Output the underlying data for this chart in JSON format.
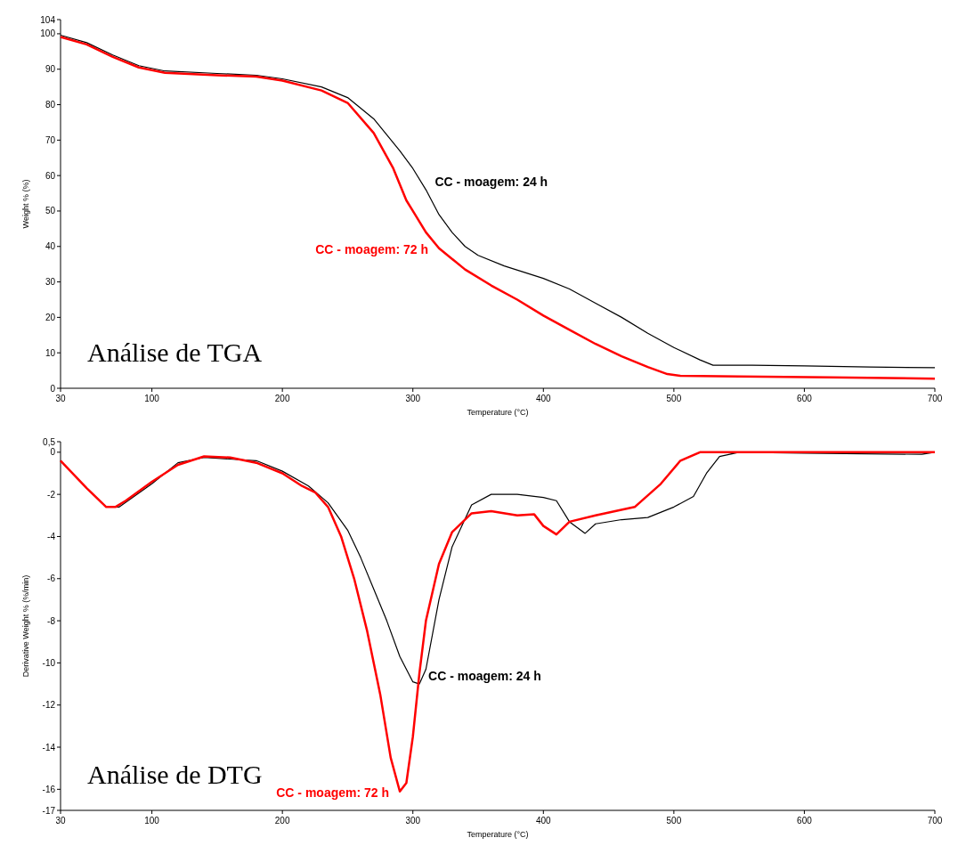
{
  "chart_data": [
    {
      "type": "line",
      "title": "Análise de TGA",
      "xlabel": "Temperature (°C)",
      "ylabel": "Weight % (%)",
      "xlim": [
        30,
        700
      ],
      "xticks": [
        30,
        100,
        200,
        300,
        400,
        500,
        600,
        700
      ],
      "ylim": [
        0,
        104
      ],
      "yticks": [
        0,
        10,
        20,
        30,
        40,
        50,
        60,
        70,
        80,
        90,
        100,
        104
      ],
      "grid": false,
      "legend": false,
      "annotations": [
        {
          "text": "CC - moagem: 24 h",
          "x": 310,
          "y": 56
        },
        {
          "text": "CC - moagem: 72 h",
          "x": 320,
          "y": 39.5
        }
      ],
      "series": [
        {
          "color": "#000000",
          "x": [
            30,
            50,
            70,
            90,
            110,
            150,
            180,
            200,
            230,
            250,
            270,
            290,
            300,
            310,
            320,
            330,
            340,
            350,
            370,
            400,
            420,
            440,
            460,
            480,
            500,
            520,
            530,
            560,
            600,
            650,
            700
          ],
          "values": [
            99.6,
            97.5,
            94,
            91,
            89.5,
            88.8,
            88.3,
            87.3,
            85,
            82,
            76,
            67,
            62,
            56,
            49,
            44,
            40,
            37.5,
            34.5,
            31,
            28,
            24,
            20,
            15.5,
            11.5,
            8,
            6.5,
            6.5,
            6.3,
            6,
            5.8
          ]
        },
        {
          "color": "#ff0000",
          "x": [
            30,
            50,
            70,
            90,
            110,
            150,
            180,
            200,
            230,
            250,
            270,
            285,
            295,
            300,
            310,
            320,
            340,
            360,
            380,
            400,
            420,
            440,
            460,
            480,
            495,
            505,
            550,
            620,
            700
          ],
          "values": [
            99.1,
            97,
            93.5,
            90.5,
            89,
            88.3,
            87.9,
            86.8,
            84,
            80.5,
            72,
            62,
            53,
            50,
            44,
            39.5,
            33.5,
            29,
            25,
            20.5,
            16.5,
            12.5,
            9,
            6,
            4,
            3.5,
            3.3,
            3.1,
            2.7
          ]
        }
      ]
    },
    {
      "type": "line",
      "title": "Análise de DTG",
      "xlabel": "Temperature (°C)",
      "ylabel": "Derivative Weight % (%/min)",
      "xlim": [
        30,
        700
      ],
      "xticks": [
        30,
        100,
        200,
        300,
        400,
        500,
        600,
        700
      ],
      "ylim": [
        -17,
        0.5
      ],
      "yticks": [
        -17,
        -16,
        -14,
        -12,
        -10,
        -8,
        -6,
        -4,
        -2,
        0,
        {
          "value": 0.5,
          "label": "0,5"
        }
      ],
      "grid": false,
      "legend": false,
      "annotations": [
        {
          "text": "CC - moagem: 24 h",
          "x": 305,
          "y": -11
        },
        {
          "text": "CC - moagem: 72 h",
          "x": 290,
          "y": -16.1
        }
      ],
      "series": [
        {
          "color": "#000000",
          "x": [
            30,
            50,
            65,
            75,
            100,
            120,
            140,
            180,
            200,
            220,
            235,
            250,
            260,
            270,
            280,
            290,
            300,
            305,
            310,
            320,
            330,
            345,
            360,
            380,
            400,
            410,
            420,
            432,
            440,
            460,
            480,
            500,
            515,
            525,
            535,
            550,
            600,
            690,
            700
          ],
          "values": [
            -0.4,
            -1.7,
            -2.6,
            -2.6,
            -1.5,
            -0.5,
            -0.25,
            -0.4,
            -0.9,
            -1.6,
            -2.4,
            -3.7,
            -5,
            -6.5,
            -8,
            -9.7,
            -10.9,
            -11,
            -10.3,
            -7,
            -4.5,
            -2.5,
            -2.0,
            -2.0,
            -2.15,
            -2.3,
            -3.3,
            -3.85,
            -3.4,
            -3.2,
            -3.1,
            -2.6,
            -2.1,
            -1.0,
            -0.2,
            0,
            -0.05,
            -0.1,
            0
          ]
        },
        {
          "color": "#ff0000",
          "x": [
            30,
            50,
            65,
            72,
            80,
            100,
            120,
            140,
            160,
            180,
            200,
            215,
            225,
            235,
            245,
            255,
            265,
            275,
            283,
            290,
            295,
            300,
            305,
            310,
            320,
            330,
            345,
            360,
            380,
            393,
            400,
            410,
            420,
            440,
            470,
            490,
            505,
            520,
            600,
            700
          ],
          "values": [
            -0.4,
            -1.7,
            -2.6,
            -2.6,
            -2.3,
            -1.4,
            -0.6,
            -0.2,
            -0.25,
            -0.5,
            -1.0,
            -1.6,
            -1.9,
            -2.6,
            -4,
            -6,
            -8.5,
            -11.5,
            -14.5,
            -16.1,
            -15.7,
            -13.5,
            -10.5,
            -8,
            -5.3,
            -3.8,
            -2.9,
            -2.8,
            -3.0,
            -2.95,
            -3.5,
            -3.9,
            -3.3,
            -3.0,
            -2.6,
            -1.5,
            -0.4,
            0,
            0,
            0
          ]
        }
      ]
    }
  ]
}
